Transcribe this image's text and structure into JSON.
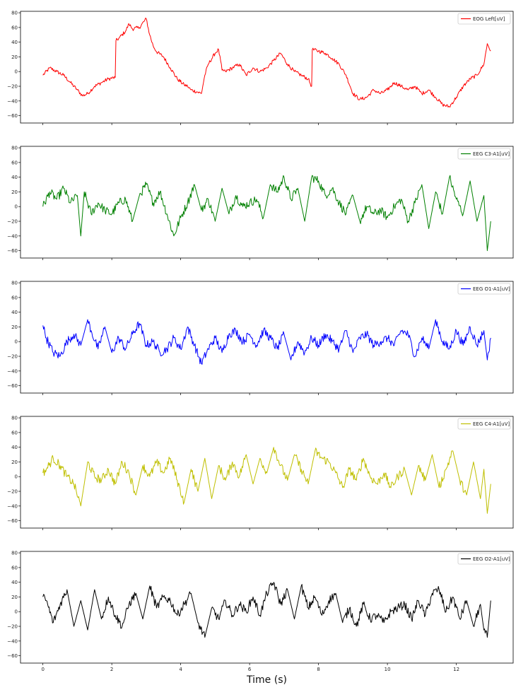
{
  "chart_data": {
    "type": "line",
    "xlabel": "Time (s)",
    "xlim": [
      -0.65,
      13.65
    ],
    "xticks": [
      0,
      2,
      4,
      6,
      8,
      10,
      12
    ],
    "xtick_labels": [
      "0",
      "2",
      "4",
      "6",
      "8",
      "10",
      "12"
    ],
    "ylim": [
      -70,
      82
    ],
    "yticks": [
      -60,
      -40,
      -20,
      0,
      20,
      40,
      60,
      80
    ],
    "ytick_labels": [
      "−60",
      "−40",
      "−20",
      "0",
      "20",
      "40",
      "60",
      "80"
    ],
    "grid": false,
    "legend_position": "upper right",
    "series": [
      {
        "name": "EOG Left[uV]",
        "color": "#ff0000",
        "t": [
          0,
          0.2,
          0.4,
          0.6,
          0.8,
          1.0,
          1.15,
          1.3,
          1.5,
          1.7,
          1.9,
          2.1,
          2.12,
          2.2,
          2.4,
          2.5,
          2.6,
          2.8,
          3.0,
          3.1,
          3.2,
          3.3,
          3.5,
          3.7,
          3.9,
          4.1,
          4.2,
          4.3,
          4.5,
          4.6,
          4.7,
          4.8,
          5.0,
          5.1,
          5.2,
          5.3,
          5.5,
          5.7,
          5.9,
          6.1,
          6.3,
          6.5,
          6.7,
          6.9,
          7.1,
          7.3,
          7.5,
          7.7,
          7.8,
          7.82,
          8.0,
          8.2,
          8.4,
          8.6,
          8.8,
          9.0,
          9.2,
          9.4,
          9.6,
          9.8,
          10.0,
          10.2,
          10.4,
          10.6,
          10.8,
          11.0,
          11.2,
          11.4,
          11.6,
          11.8,
          12.0,
          12.2,
          12.4,
          12.6,
          12.8,
          12.9,
          13.0
        ],
        "v": [
          -5,
          5,
          0,
          -5,
          -15,
          -25,
          -33,
          -30,
          -20,
          -15,
          -10,
          -8,
          42,
          45,
          55,
          65,
          58,
          60,
          72,
          50,
          35,
          27,
          20,
          5,
          -10,
          -18,
          -20,
          -25,
          -28,
          -30,
          -5,
          10,
          25,
          30,
          2,
          0,
          5,
          10,
          -5,
          5,
          0,
          5,
          15,
          25,
          10,
          0,
          -5,
          -10,
          -20,
          30,
          28,
          25,
          18,
          10,
          -5,
          -30,
          -38,
          -35,
          -25,
          -30,
          -25,
          -15,
          -20,
          -25,
          -20,
          -30,
          -25,
          -35,
          -45,
          -48,
          -35,
          -20,
          -10,
          -5,
          10,
          38,
          28
        ]
      },
      {
        "name": "EEG C3-A1[uV]",
        "color": "#008000",
        "t": [
          0,
          0.2,
          0.4,
          0.6,
          0.8,
          1.0,
          1.1,
          1.2,
          1.4,
          1.6,
          1.8,
          2.0,
          2.2,
          2.4,
          2.6,
          2.8,
          3.0,
          3.2,
          3.4,
          3.6,
          3.8,
          4.0,
          4.2,
          4.4,
          4.6,
          4.8,
          5.0,
          5.2,
          5.4,
          5.6,
          5.8,
          6.0,
          6.2,
          6.4,
          6.6,
          6.8,
          7.0,
          7.2,
          7.4,
          7.6,
          7.8,
          8.0,
          8.2,
          8.4,
          8.6,
          8.8,
          9.0,
          9.2,
          9.4,
          9.6,
          9.8,
          10.0,
          10.2,
          10.4,
          10.6,
          10.8,
          11.0,
          11.2,
          11.4,
          11.6,
          11.8,
          12.0,
          12.2,
          12.4,
          12.6,
          12.8,
          12.9,
          13.0
        ],
        "v": [
          0,
          20,
          10,
          25,
          5,
          15,
          -40,
          20,
          -10,
          5,
          -5,
          -10,
          5,
          10,
          -20,
          15,
          30,
          5,
          20,
          -10,
          -40,
          -15,
          5,
          30,
          -5,
          10,
          -20,
          25,
          -10,
          15,
          0,
          5,
          10,
          -15,
          30,
          20,
          40,
          10,
          25,
          -20,
          40,
          35,
          15,
          25,
          5,
          -10,
          15,
          -20,
          0,
          -10,
          -5,
          -15,
          0,
          10,
          -20,
          5,
          30,
          -30,
          20,
          -10,
          40,
          10,
          -10,
          35,
          -20,
          15,
          -60,
          -20
        ]
      },
      {
        "name": "EEG O1-A1[uV]",
        "color": "#0000ff",
        "t": [
          0,
          0.1,
          0.3,
          0.5,
          0.7,
          0.9,
          1.1,
          1.3,
          1.4,
          1.6,
          1.8,
          2.0,
          2.2,
          2.4,
          2.6,
          2.8,
          3.0,
          3.2,
          3.4,
          3.6,
          3.8,
          4.0,
          4.2,
          4.4,
          4.6,
          4.8,
          5.0,
          5.2,
          5.4,
          5.6,
          5.8,
          6.0,
          6.2,
          6.4,
          6.6,
          6.8,
          7.0,
          7.2,
          7.4,
          7.6,
          7.8,
          8.0,
          8.2,
          8.4,
          8.6,
          8.8,
          9.0,
          9.2,
          9.4,
          9.6,
          9.8,
          10.0,
          10.2,
          10.4,
          10.6,
          10.8,
          11.0,
          11.2,
          11.4,
          11.6,
          11.8,
          12.0,
          12.2,
          12.4,
          12.6,
          12.8,
          12.9,
          13.0
        ],
        "v": [
          22,
          5,
          -15,
          -20,
          0,
          10,
          -5,
          30,
          15,
          -10,
          20,
          -15,
          5,
          -10,
          10,
          25,
          -5,
          0,
          -15,
          -10,
          5,
          -10,
          20,
          -5,
          -30,
          -10,
          5,
          -15,
          10,
          15,
          0,
          10,
          -5,
          15,
          5,
          -10,
          10,
          -25,
          0,
          -15,
          5,
          -5,
          10,
          0,
          -10,
          15,
          -15,
          5,
          10,
          -5,
          0,
          5,
          -5,
          15,
          10,
          -20,
          5,
          -10,
          30,
          0,
          -10,
          15,
          -5,
          20,
          -5,
          15,
          -25,
          5
        ]
      },
      {
        "name": "EEG C4-A1[uV]",
        "color": "#bfbf00",
        "t": [
          0,
          0.1,
          0.3,
          0.5,
          0.7,
          0.9,
          1.1,
          1.3,
          1.5,
          1.7,
          1.9,
          2.1,
          2.3,
          2.5,
          2.7,
          2.9,
          3.1,
          3.3,
          3.5,
          3.7,
          3.9,
          4.1,
          4.3,
          4.5,
          4.7,
          4.9,
          5.1,
          5.3,
          5.5,
          5.7,
          5.9,
          6.1,
          6.3,
          6.5,
          6.7,
          6.9,
          7.1,
          7.3,
          7.5,
          7.7,
          7.9,
          8.1,
          8.3,
          8.5,
          8.7,
          8.9,
          9.1,
          9.3,
          9.5,
          9.7,
          9.9,
          10.1,
          10.3,
          10.5,
          10.7,
          10.9,
          11.1,
          11.3,
          11.5,
          11.7,
          11.9,
          12.1,
          12.3,
          12.5,
          12.7,
          12.8,
          12.9,
          13.0
        ],
        "v": [
          5,
          10,
          25,
          15,
          0,
          -10,
          -40,
          20,
          0,
          -5,
          10,
          -10,
          20,
          5,
          -25,
          15,
          0,
          20,
          5,
          25,
          -5,
          -35,
          10,
          -20,
          25,
          -30,
          15,
          -5,
          20,
          0,
          30,
          -10,
          25,
          5,
          40,
          15,
          -5,
          30,
          10,
          -10,
          35,
          25,
          20,
          5,
          -15,
          10,
          -5,
          25,
          0,
          -10,
          5,
          -15,
          0,
          10,
          -25,
          15,
          -5,
          30,
          -15,
          10,
          35,
          -5,
          -25,
          20,
          -30,
          10,
          -50,
          -10
        ]
      },
      {
        "name": "EEG O2-A1[uV]",
        "color": "#000000",
        "t": [
          0,
          0.1,
          0.3,
          0.5,
          0.7,
          0.9,
          1.1,
          1.3,
          1.5,
          1.7,
          1.9,
          2.1,
          2.3,
          2.5,
          2.7,
          2.9,
          3.1,
          3.3,
          3.5,
          3.7,
          3.9,
          4.1,
          4.3,
          4.5,
          4.7,
          4.9,
          5.1,
          5.3,
          5.5,
          5.7,
          5.9,
          6.1,
          6.3,
          6.5,
          6.7,
          6.9,
          7.1,
          7.3,
          7.5,
          7.7,
          7.9,
          8.1,
          8.3,
          8.5,
          8.7,
          8.9,
          9.1,
          9.3,
          9.5,
          9.7,
          9.9,
          10.1,
          10.3,
          10.5,
          10.7,
          10.9,
          11.1,
          11.3,
          11.5,
          11.7,
          11.9,
          12.1,
          12.3,
          12.5,
          12.7,
          12.8,
          12.9,
          13.0
        ],
        "v": [
          20,
          15,
          -15,
          10,
          30,
          -20,
          15,
          -25,
          30,
          -10,
          20,
          -5,
          -20,
          10,
          25,
          -10,
          35,
          5,
          20,
          15,
          -5,
          10,
          25,
          -15,
          -35,
          5,
          -10,
          15,
          -5,
          10,
          0,
          20,
          -5,
          25,
          40,
          10,
          30,
          -10,
          35,
          5,
          20,
          -5,
          15,
          25,
          -15,
          5,
          -20,
          10,
          -10,
          -5,
          -15,
          0,
          5,
          10,
          -10,
          15,
          -5,
          25,
          30,
          0,
          20,
          -10,
          15,
          -20,
          10,
          -25,
          -35,
          15
        ]
      }
    ]
  }
}
